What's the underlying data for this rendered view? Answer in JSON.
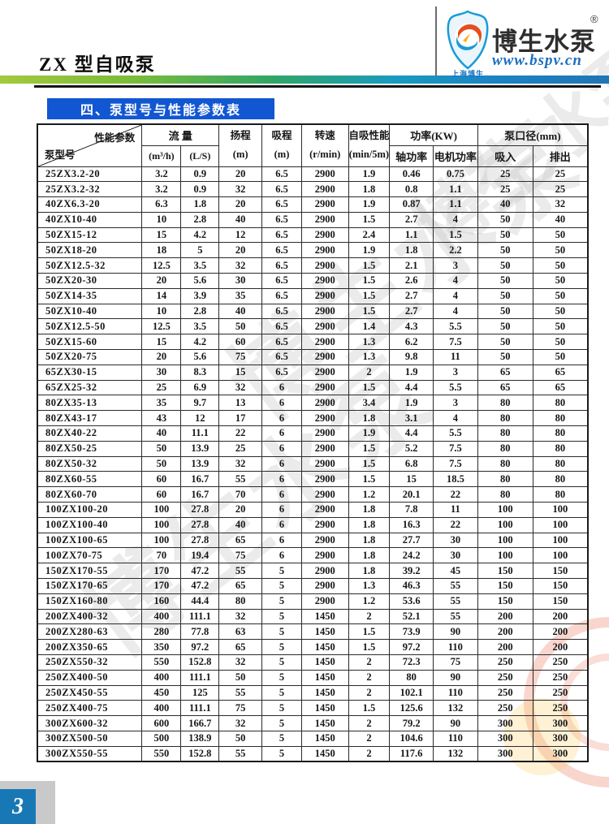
{
  "page": {
    "title": "ZX 型自吸泵",
    "page_number": "3"
  },
  "logo": {
    "brand": "博生水泵",
    "registered_mark": "®",
    "website": "www.bspv.cn",
    "subtitle": "上海博生"
  },
  "section": {
    "title": "四、泵型号与性能参数表"
  },
  "colors": {
    "section_bar_blue": "#1257d2",
    "gradient_left_green": "#a3c93c",
    "gradient_right_blue": "#2076b4",
    "page_badge_blue": "#1878b5",
    "brand_blue": "#1b6fc0"
  },
  "watermark": {
    "text": "博生水泵"
  },
  "table": {
    "diagonal": {
      "top_right": "性能参数",
      "bottom_left": "泵型号"
    },
    "groups": {
      "flow": "流 量",
      "power": "功率(KW)",
      "diameter": "泵口径(mm)"
    },
    "columns": {
      "flow_m3h_unit": "(m³/h)",
      "flow_ls_unit": "(L/S)",
      "head": "扬程",
      "head_unit": "(m)",
      "suction": "吸程",
      "suction_unit": "(m)",
      "speed": "转速",
      "speed_unit": "(r/min)",
      "selfprime": "自吸性能",
      "selfprime_unit": "(min/5m)",
      "shaft_power": "轴功率",
      "motor_power": "电机功率",
      "inlet": "吸入",
      "outlet": "排出"
    },
    "rows": [
      [
        "25ZX3.2-20",
        "3.2",
        "0.9",
        "20",
        "6.5",
        "2900",
        "1.9",
        "0.46",
        "0.75",
        "25",
        "25"
      ],
      [
        "25ZX3.2-32",
        "3.2",
        "0.9",
        "32",
        "6.5",
        "2900",
        "1.8",
        "0.8",
        "1.1",
        "25",
        "25"
      ],
      [
        "40ZX6.3-20",
        "6.3",
        "1.8",
        "20",
        "6.5",
        "2900",
        "1.9",
        "0.87",
        "1.1",
        "40",
        "32"
      ],
      [
        "40ZX10-40",
        "10",
        "2.8",
        "40",
        "6.5",
        "2900",
        "1.5",
        "2.7",
        "4",
        "50",
        "40"
      ],
      [
        "50ZX15-12",
        "15",
        "4.2",
        "12",
        "6.5",
        "2900",
        "2.4",
        "1.1",
        "1.5",
        "50",
        "50"
      ],
      [
        "50ZX18-20",
        "18",
        "5",
        "20",
        "6.5",
        "2900",
        "1.9",
        "1.8",
        "2.2",
        "50",
        "50"
      ],
      [
        "50ZX12.5-32",
        "12.5",
        "3.5",
        "32",
        "6.5",
        "2900",
        "1.5",
        "2.1",
        "3",
        "50",
        "50"
      ],
      [
        "50ZX20-30",
        "20",
        "5.6",
        "30",
        "6.5",
        "2900",
        "1.5",
        "2.6",
        "4",
        "50",
        "50"
      ],
      [
        "50ZX14-35",
        "14",
        "3.9",
        "35",
        "6.5",
        "2900",
        "1.5",
        "2.7",
        "4",
        "50",
        "50"
      ],
      [
        "50ZX10-40",
        "10",
        "2.8",
        "40",
        "6.5",
        "2900",
        "1.5",
        "2.7",
        "4",
        "50",
        "50"
      ],
      [
        "50ZX12.5-50",
        "12.5",
        "3.5",
        "50",
        "6.5",
        "2900",
        "1.4",
        "4.3",
        "5.5",
        "50",
        "50"
      ],
      [
        "50ZX15-60",
        "15",
        "4.2",
        "60",
        "6.5",
        "2900",
        "1.3",
        "6.2",
        "7.5",
        "50",
        "50"
      ],
      [
        "50ZX20-75",
        "20",
        "5.6",
        "75",
        "6.5",
        "2900",
        "1.3",
        "9.8",
        "11",
        "50",
        "50"
      ],
      [
        "65ZX30-15",
        "30",
        "8.3",
        "15",
        "6.5",
        "2900",
        "2",
        "1.9",
        "3",
        "65",
        "65"
      ],
      [
        "65ZX25-32",
        "25",
        "6.9",
        "32",
        "6",
        "2900",
        "1.5",
        "4.4",
        "5.5",
        "65",
        "65"
      ],
      [
        "80ZX35-13",
        "35",
        "9.7",
        "13",
        "6",
        "2900",
        "3.4",
        "1.9",
        "3",
        "80",
        "80"
      ],
      [
        "80ZX43-17",
        "43",
        "12",
        "17",
        "6",
        "2900",
        "1.8",
        "3.1",
        "4",
        "80",
        "80"
      ],
      [
        "80ZX40-22",
        "40",
        "11.1",
        "22",
        "6",
        "2900",
        "1.9",
        "4.4",
        "5.5",
        "80",
        "80"
      ],
      [
        "80ZX50-25",
        "50",
        "13.9",
        "25",
        "6",
        "2900",
        "1.5",
        "5.2",
        "7.5",
        "80",
        "80"
      ],
      [
        "80ZX50-32",
        "50",
        "13.9",
        "32",
        "6",
        "2900",
        "1.5",
        "6.8",
        "7.5",
        "80",
        "80"
      ],
      [
        "80ZX60-55",
        "60",
        "16.7",
        "55",
        "6",
        "2900",
        "1.5",
        "15",
        "18.5",
        "80",
        "80"
      ],
      [
        "80ZX60-70",
        "60",
        "16.7",
        "70",
        "6",
        "2900",
        "1.2",
        "20.1",
        "22",
        "80",
        "80"
      ],
      [
        "100ZX100-20",
        "100",
        "27.8",
        "20",
        "6",
        "2900",
        "1.8",
        "7.8",
        "11",
        "100",
        "100"
      ],
      [
        "100ZX100-40",
        "100",
        "27.8",
        "40",
        "6",
        "2900",
        "1.8",
        "16.3",
        "22",
        "100",
        "100"
      ],
      [
        "100ZX100-65",
        "100",
        "27.8",
        "65",
        "6",
        "2900",
        "1.8",
        "27.7",
        "30",
        "100",
        "100"
      ],
      [
        "100ZX70-75",
        "70",
        "19.4",
        "75",
        "6",
        "2900",
        "1.8",
        "24.2",
        "30",
        "100",
        "100"
      ],
      [
        "150ZX170-55",
        "170",
        "47.2",
        "55",
        "5",
        "2900",
        "1.8",
        "39.2",
        "45",
        "150",
        "150"
      ],
      [
        "150ZX170-65",
        "170",
        "47.2",
        "65",
        "5",
        "2900",
        "1.3",
        "46.3",
        "55",
        "150",
        "150"
      ],
      [
        "150ZX160-80",
        "160",
        "44.4",
        "80",
        "5",
        "2900",
        "1.2",
        "53.6",
        "55",
        "150",
        "150"
      ],
      [
        "200ZX400-32",
        "400",
        "111.1",
        "32",
        "5",
        "1450",
        "2",
        "52.1",
        "55",
        "200",
        "200"
      ],
      [
        "200ZX280-63",
        "280",
        "77.8",
        "63",
        "5",
        "1450",
        "1.5",
        "73.9",
        "90",
        "200",
        "200"
      ],
      [
        "200ZX350-65",
        "350",
        "97.2",
        "65",
        "5",
        "1450",
        "1.5",
        "97.2",
        "110",
        "200",
        "200"
      ],
      [
        "250ZX550-32",
        "550",
        "152.8",
        "32",
        "5",
        "1450",
        "2",
        "72.3",
        "75",
        "250",
        "250"
      ],
      [
        "250ZX400-50",
        "400",
        "111.1",
        "50",
        "5",
        "1450",
        "2",
        "80",
        "90",
        "250",
        "250"
      ],
      [
        "250ZX450-55",
        "450",
        "125",
        "55",
        "5",
        "1450",
        "2",
        "102.1",
        "110",
        "250",
        "250"
      ],
      [
        "250ZX400-75",
        "400",
        "111.1",
        "75",
        "5",
        "1450",
        "1.5",
        "125.6",
        "132",
        "250",
        "250"
      ],
      [
        "300ZX600-32",
        "600",
        "166.7",
        "32",
        "5",
        "1450",
        "2",
        "79.2",
        "90",
        "300",
        "300"
      ],
      [
        "300ZX500-50",
        "500",
        "138.9",
        "50",
        "5",
        "1450",
        "2",
        "104.6",
        "110",
        "300",
        "300"
      ],
      [
        "300ZX550-55",
        "550",
        "152.8",
        "55",
        "5",
        "1450",
        "2",
        "117.6",
        "132",
        "300",
        "300"
      ]
    ]
  }
}
